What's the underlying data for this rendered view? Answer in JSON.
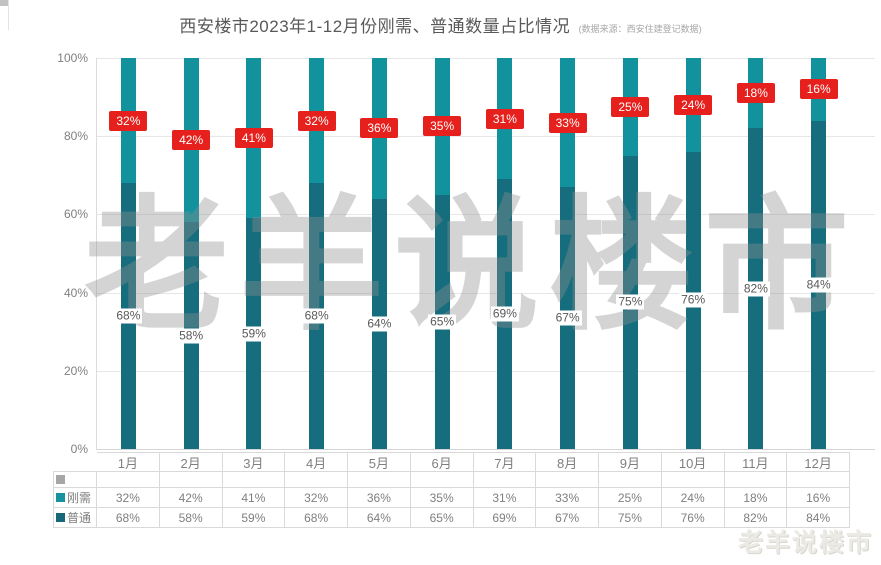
{
  "page": {
    "title": "西安楼市2023年1-12月份刚需、普通数量占比情况",
    "source_note": "(数据来源：西安住建登记数据)",
    "watermark_center": "老羊说楼市",
    "watermark_corner": "老羊说楼市"
  },
  "chart_data": {
    "type": "bar",
    "subtype": "100-percent-stacked-column",
    "title": "西安楼市2023年1-12月份刚需、普通数量占比情况",
    "categories": [
      "1月",
      "2月",
      "3月",
      "4月",
      "5月",
      "6月",
      "7月",
      "8月",
      "9月",
      "10月",
      "11月",
      "12月"
    ],
    "series": [
      {
        "name": "刚需",
        "values": [
          32,
          42,
          41,
          32,
          36,
          35,
          31,
          33,
          25,
          24,
          18,
          16
        ],
        "color": "#11929D",
        "legend_color": "#18929E",
        "label_style": "red-badge"
      },
      {
        "name": "普通",
        "values": [
          68,
          58,
          59,
          68,
          64,
          65,
          69,
          67,
          75,
          76,
          82,
          84
        ],
        "color": "#156D7E",
        "legend_color": "#17697A",
        "label_style": "white-box"
      }
    ],
    "placeholder_series": {
      "name": "",
      "legend_color": "#A6A6A6"
    },
    "value_suffix": "%",
    "y_axis": {
      "min": 0,
      "max": 100,
      "tick_step": 20,
      "ticks": [
        "0%",
        "20%",
        "40%",
        "60%",
        "80%",
        "100%"
      ],
      "grid": true
    },
    "x_axis_label": "",
    "y_axis_label": "",
    "legend_position": "data-table-left-column",
    "data_table_shown": true,
    "badge_color": "#E6201C",
    "badge_text_color": "#FFFFFF"
  }
}
